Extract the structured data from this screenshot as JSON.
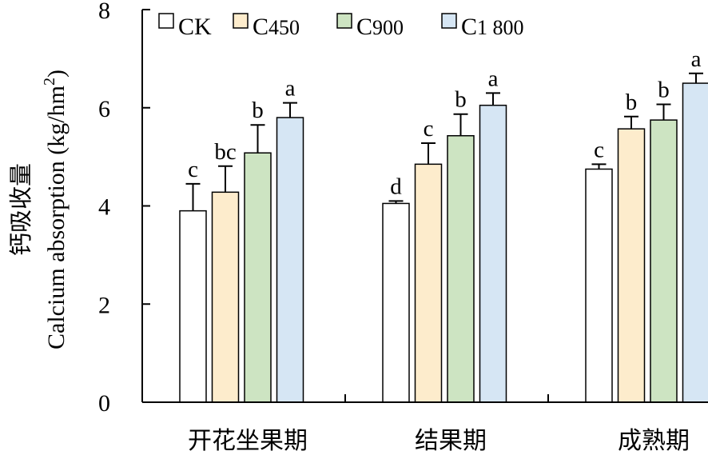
{
  "chart_data": {
    "type": "bar",
    "ylabel_cn": "钙吸收量",
    "ylabel_en": "Calcium absorption (kg/hm",
    "ylabel_sup": "2",
    "ylabel_end": ")",
    "ylim": [
      0,
      8
    ],
    "yticks": [
      "0",
      "2",
      "4",
      "6",
      "8"
    ],
    "categories": [
      "开花坐果期",
      "结果期",
      "成熟期"
    ],
    "legend_position": "top",
    "series": [
      {
        "name": "CK",
        "color": "#ffffff",
        "values": [
          3.9,
          4.05,
          4.75
        ],
        "errors": [
          0.55,
          0.05,
          0.1
        ],
        "labels": [
          "c",
          "d",
          "c"
        ]
      },
      {
        "name": "C450",
        "name_main": "C",
        "name_sub": "450",
        "color": "#fdeccc",
        "values": [
          4.28,
          4.85,
          5.57
        ],
        "errors": [
          0.53,
          0.43,
          0.25
        ],
        "labels": [
          "bc",
          "c",
          "b"
        ]
      },
      {
        "name": "C900",
        "name_main": "C",
        "name_sub": "900",
        "color": "#cde4c2",
        "values": [
          5.08,
          5.43,
          5.75
        ],
        "errors": [
          0.57,
          0.44,
          0.32
        ],
        "labels": [
          "b",
          "b",
          "b"
        ]
      },
      {
        "name": "C1 800",
        "name_main": "C",
        "name_sub": "1 800",
        "color": "#d6e6f4",
        "values": [
          5.8,
          6.05,
          6.5
        ],
        "errors": [
          0.3,
          0.25,
          0.2
        ],
        "labels": [
          "a",
          "a",
          "a"
        ]
      }
    ]
  }
}
